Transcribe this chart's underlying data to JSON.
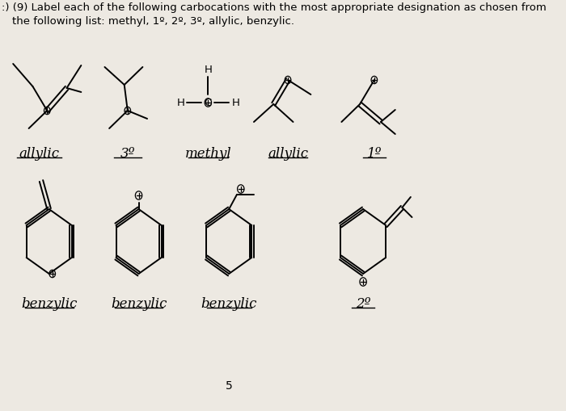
{
  "title_line1": ":) (9) Label each of the following carbocations with the most appropriate designation as chosen from",
  "title_line2": "the following list: methyl, 1º, 2º, 3º, allylic, benzylic.",
  "bg_color": "#ede9e2",
  "labels_row1": [
    "allylic",
    "3º",
    "methyl",
    "allylic",
    "1º"
  ],
  "labels_row2": [
    "benzylic",
    "benzylic",
    "benzylic",
    "2º"
  ],
  "page_number": "5",
  "font_size_label": 12,
  "font_size_header": 9.5,
  "lw": 1.4,
  "plus_size": 0.09,
  "plus_lw": 0.9
}
